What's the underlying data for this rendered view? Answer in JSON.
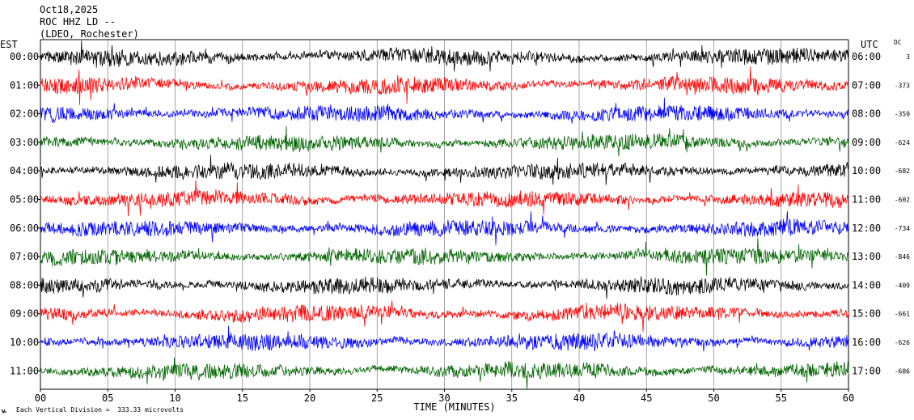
{
  "header": {
    "date": "Oct18,2025",
    "station": "ROC HHZ LD --",
    "network": "(LDEO, Rochester)"
  },
  "labels": {
    "left_timezone": "EST",
    "right_timezone": "UTC",
    "dc_header": "DC",
    "x_axis_title": "TIME (MINUTES)",
    "scale_note": "Each Vertical Division =  333.33 microvolts"
  },
  "chart_data": {
    "type": "line",
    "title": "ROC HHZ LD --",
    "xlabel": "TIME (MINUTES)",
    "ylabel": "",
    "xlim": [
      0,
      60
    ],
    "x_ticks": [
      "00",
      "05",
      "10",
      "15",
      "20",
      "25",
      "30",
      "35",
      "40",
      "45",
      "50",
      "55",
      "60"
    ],
    "grid": "vertical lines every 5 minutes",
    "vertical_division_microvolts": 333.33,
    "trace_colors": [
      "#000000",
      "#ff0000",
      "#0000ff",
      "#006400"
    ],
    "rows": [
      {
        "est": "00:00",
        "utc": "06:00",
        "dc": "3"
      },
      {
        "est": "01:00",
        "utc": "07:00",
        "dc": "-373"
      },
      {
        "est": "02:00",
        "utc": "08:00",
        "dc": "-359"
      },
      {
        "est": "03:00",
        "utc": "09:00",
        "dc": "-624"
      },
      {
        "est": "04:00",
        "utc": "10:00",
        "dc": "-682"
      },
      {
        "est": "05:00",
        "utc": "11:00",
        "dc": "-602"
      },
      {
        "est": "06:00",
        "utc": "12:00",
        "dc": "-734"
      },
      {
        "est": "07:00",
        "utc": "13:00",
        "dc": "-846"
      },
      {
        "est": "08:00",
        "utc": "14:00",
        "dc": "-409"
      },
      {
        "est": "09:00",
        "utc": "15:00",
        "dc": "-661"
      },
      {
        "est": "10:00",
        "utc": "16:00",
        "dc": "-626"
      },
      {
        "est": "11:00",
        "utc": "17:00",
        "dc": "-686"
      }
    ]
  }
}
